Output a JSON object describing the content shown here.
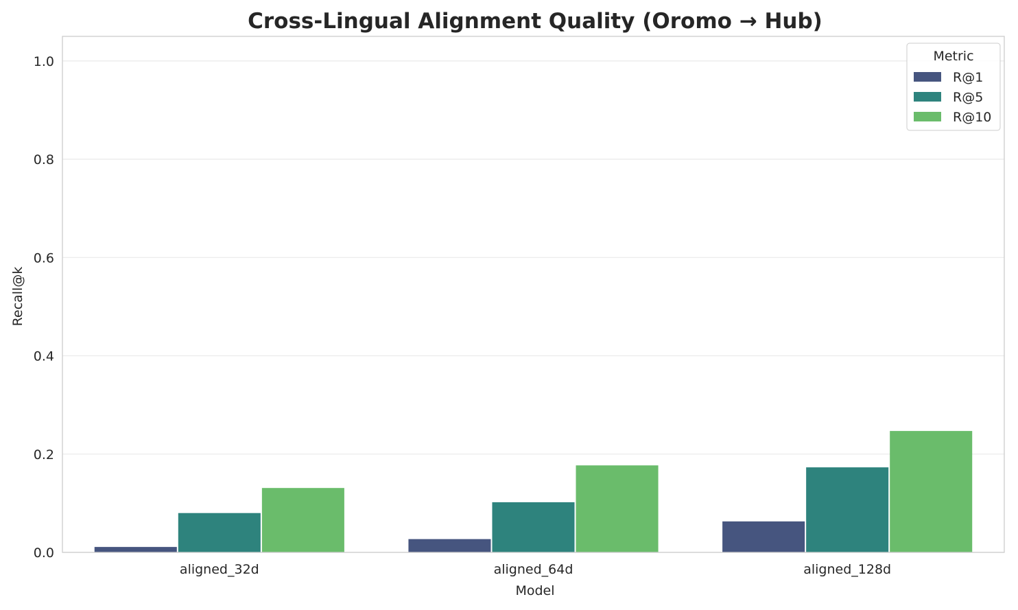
{
  "chart_data": {
    "type": "bar",
    "title": "Cross-Lingual Alignment Quality (Oromo → Hub)",
    "xlabel": "Model",
    "ylabel": "Recall@k",
    "categories": [
      "aligned_32d",
      "aligned_64d",
      "aligned_128d"
    ],
    "series": [
      {
        "name": "R@1",
        "values": [
          0.011,
          0.027,
          0.063
        ],
        "color": "#46557f"
      },
      {
        "name": "R@5",
        "values": [
          0.08,
          0.102,
          0.173
        ],
        "color": "#2e837d"
      },
      {
        "name": "R@10",
        "values": [
          0.131,
          0.177,
          0.247
        ],
        "color": "#6abc6b"
      }
    ],
    "ylim": [
      0,
      1.05
    ],
    "yticks": [
      "0.0",
      "0.2",
      "0.4",
      "0.6",
      "0.8",
      "1.0"
    ],
    "grid": true,
    "legend": {
      "title": "Metric",
      "placement": "top-right"
    }
  }
}
